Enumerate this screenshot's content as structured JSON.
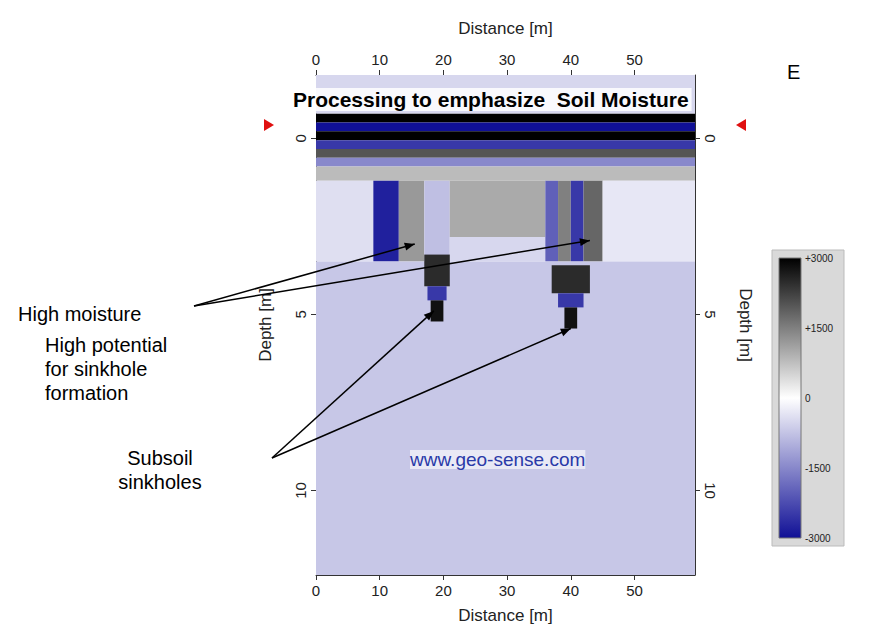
{
  "chart_data": {
    "type": "heatmap",
    "title": "Processing to emphasize  Soil Moisture",
    "corner_label": "E",
    "x_label": "Distance [m]",
    "y_label": "Depth [m]",
    "xlim": [
      0,
      59.5
    ],
    "xticks": [
      0,
      10,
      20,
      30,
      40,
      50
    ],
    "ylim": [
      -1.8,
      12.4
    ],
    "yticks": [
      0,
      5,
      10
    ],
    "colorbar": {
      "range": [
        -3000,
        3000
      ],
      "ticks": [
        -3000,
        -1500,
        0,
        {
          "value": 1500,
          "label": "+1500"
        },
        {
          "value": 3000,
          "label": "+3000"
        }
      ]
    },
    "regions": [
      {
        "x": [
          0,
          59.5
        ],
        "depth": [
          -1.8,
          -0.7
        ],
        "value": -500
      },
      {
        "x": [
          0,
          59.5
        ],
        "depth": [
          -0.7,
          -0.45
        ],
        "value": 3000
      },
      {
        "x": [
          0,
          59.5
        ],
        "depth": [
          -0.45,
          -0.2
        ],
        "value": -3000
      },
      {
        "x": [
          0,
          59.5
        ],
        "depth": [
          -0.2,
          0.05
        ],
        "value": 3000
      },
      {
        "x": [
          0,
          59.5
        ],
        "depth": [
          0.05,
          0.3
        ],
        "value": -2500
      },
      {
        "x": [
          0,
          59.5
        ],
        "depth": [
          0.3,
          0.55
        ],
        "value": 2000
      },
      {
        "x": [
          0,
          59.5
        ],
        "depth": [
          0.55,
          0.8
        ],
        "value": -1500
      },
      {
        "x": [
          0,
          59.5
        ],
        "depth": [
          0.8,
          1.2
        ],
        "value": 800
      },
      {
        "x": [
          0,
          9
        ],
        "depth": [
          1.2,
          3.5
        ],
        "value": -400
      },
      {
        "x": [
          9,
          13
        ],
        "depth": [
          1.2,
          3.5
        ],
        "value": -2800
      },
      {
        "x": [
          13,
          17
        ],
        "depth": [
          1.2,
          3.5
        ],
        "value": 1200
      },
      {
        "x": [
          17,
          21
        ],
        "depth": [
          1.2,
          3.5
        ],
        "value": -800
      },
      {
        "x": [
          21,
          36
        ],
        "depth": [
          1.2,
          2.8
        ],
        "value": 1000
      },
      {
        "x": [
          21,
          36
        ],
        "depth": [
          2.8,
          3.5
        ],
        "value": -500
      },
      {
        "x": [
          36,
          38
        ],
        "depth": [
          1.2,
          3.5
        ],
        "value": -2000
      },
      {
        "x": [
          38,
          40
        ],
        "depth": [
          1.2,
          3.5
        ],
        "value": 1500
      },
      {
        "x": [
          40,
          42
        ],
        "depth": [
          1.2,
          3.5
        ],
        "value": -2500
      },
      {
        "x": [
          42,
          45
        ],
        "depth": [
          1.2,
          3.5
        ],
        "value": 1800
      },
      {
        "x": [
          45,
          59.5
        ],
        "depth": [
          1.2,
          3.5
        ],
        "value": -300
      },
      {
        "x": [
          0,
          59.5
        ],
        "depth": [
          3.5,
          12.4
        ],
        "value": -700
      },
      {
        "x": [
          17,
          21
        ],
        "depth": [
          3.3,
          4.2
        ],
        "value": 2500
      },
      {
        "x": [
          17.5,
          20.5
        ],
        "depth": [
          4.2,
          4.6
        ],
        "value": -2500
      },
      {
        "x": [
          18,
          20
        ],
        "depth": [
          4.6,
          5.2
        ],
        "value": 2800
      },
      {
        "x": [
          37,
          43
        ],
        "depth": [
          3.6,
          4.4
        ],
        "value": 2500
      },
      {
        "x": [
          38,
          42
        ],
        "depth": [
          4.4,
          4.8
        ],
        "value": -2500
      },
      {
        "x": [
          39,
          41
        ],
        "depth": [
          4.8,
          5.4
        ],
        "value": 2800
      }
    ],
    "annotations": [
      {
        "text": "High moisture",
        "targets": [
          [
            15.5,
            3.0
          ],
          [
            43,
            2.9
          ]
        ]
      },
      {
        "text": "High potential\nfor sinkhole\nformation"
      },
      {
        "text": "Subsoil\nsinkholes",
        "targets": [
          [
            18.5,
            4.9
          ],
          [
            40,
            5.4
          ]
        ]
      }
    ],
    "watermark": "www.geo-sense.com"
  }
}
